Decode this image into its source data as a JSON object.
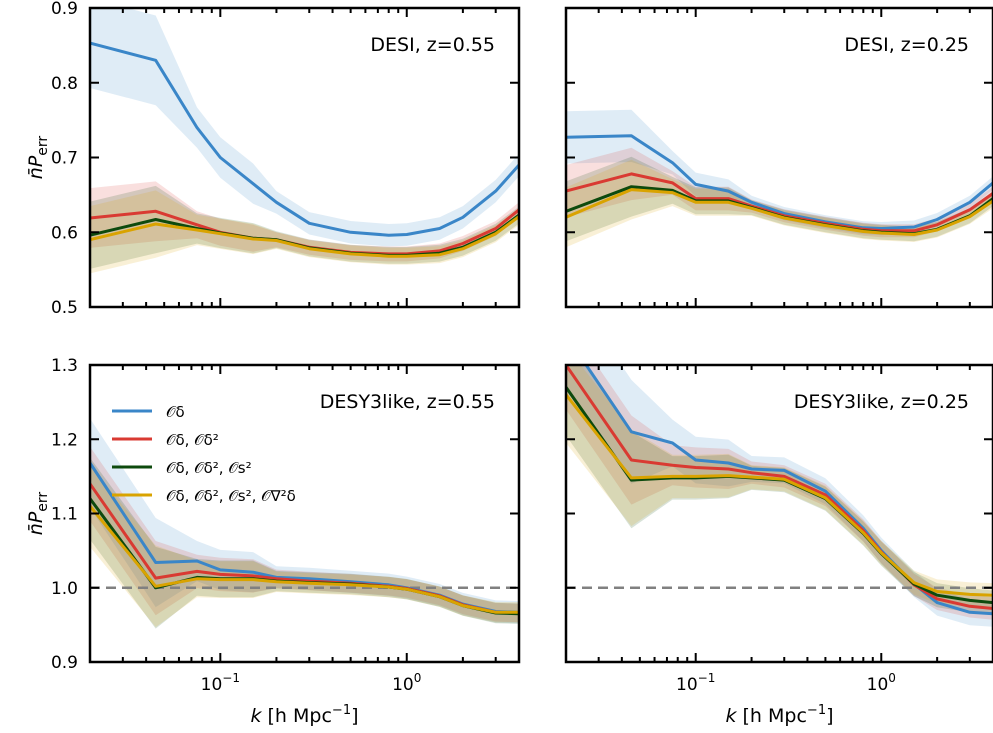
{
  "figure": {
    "ylabel": "n̄P",
    "ylabel_sub": "err",
    "xlabel_k": "k",
    "xlabel_units": "[h Mpc",
    "xlabel_exp": "−1",
    "xlabel_close": "]"
  },
  "legend": [
    {
      "label": "𝒪δ",
      "color": "#3a86c8"
    },
    {
      "label": "𝒪δ, 𝒪δ²",
      "color": "#d93a32"
    },
    {
      "label": "𝒪δ, 𝒪δ², 𝒪s²",
      "color": "#0d4a0d"
    },
    {
      "label": "𝒪δ, 𝒪δ², 𝒪s², 𝒪∇²δ",
      "color": "#d9a300"
    }
  ],
  "chart_data": [
    {
      "type": "line",
      "title": "DESI, z=0.55",
      "xscale": "log",
      "xlim": [
        0.02,
        4.0
      ],
      "ylim": [
        0.5,
        0.9
      ],
      "yticks": [
        "0.5",
        "0.6",
        "0.7",
        "0.8",
        "0.9"
      ],
      "xticks": [
        {
          "base": "10",
          "exp": "−1",
          "value": 0.1
        },
        {
          "base": "10",
          "exp": "0",
          "value": 1.0
        }
      ],
      "x": [
        0.02,
        0.045,
        0.075,
        0.1,
        0.15,
        0.2,
        0.3,
        0.5,
        0.8,
        1.0,
        1.5,
        2.0,
        3.0,
        4.0
      ],
      "series": [
        {
          "values": [
            0.853,
            0.83,
            0.74,
            0.7,
            0.665,
            0.64,
            0.612,
            0.6,
            0.596,
            0.597,
            0.605,
            0.62,
            0.655,
            0.69
          ],
          "color": "#3a86c8",
          "band": 0.06
        },
        {
          "values": [
            0.619,
            0.628,
            0.61,
            0.6,
            0.592,
            0.59,
            0.58,
            0.573,
            0.571,
            0.571,
            0.575,
            0.585,
            0.605,
            0.63
          ],
          "color": "#d93a32",
          "band": 0.04
        },
        {
          "values": [
            0.596,
            0.617,
            0.605,
            0.599,
            0.592,
            0.59,
            0.579,
            0.572,
            0.569,
            0.569,
            0.572,
            0.58,
            0.6,
            0.623
          ],
          "color": "#0d4a0d",
          "band": 0.045
        },
        {
          "values": [
            0.59,
            0.611,
            0.603,
            0.598,
            0.591,
            0.589,
            0.578,
            0.571,
            0.568,
            0.568,
            0.57,
            0.578,
            0.598,
            0.621
          ],
          "color": "#d9a300",
          "band": 0.045
        }
      ]
    },
    {
      "type": "line",
      "title": "DESI, z=0.25",
      "xscale": "log",
      "xlim": [
        0.02,
        4.0
      ],
      "ylim": [
        0.5,
        0.9
      ],
      "yticks": [
        "0.5",
        "0.6",
        "0.7",
        "0.8",
        "0.9"
      ],
      "xticks": [
        {
          "base": "10",
          "exp": "−1",
          "value": 0.1
        },
        {
          "base": "10",
          "exp": "0",
          "value": 1.0
        }
      ],
      "x": [
        0.02,
        0.045,
        0.075,
        0.1,
        0.15,
        0.2,
        0.3,
        0.5,
        0.8,
        1.0,
        1.5,
        2.0,
        3.0,
        4.0
      ],
      "series": [
        {
          "values": [
            0.727,
            0.729,
            0.693,
            0.664,
            0.655,
            0.64,
            0.625,
            0.614,
            0.606,
            0.605,
            0.607,
            0.617,
            0.64,
            0.666
          ],
          "color": "#3a86c8",
          "band": 0.035
        },
        {
          "values": [
            0.655,
            0.678,
            0.666,
            0.645,
            0.645,
            0.635,
            0.622,
            0.612,
            0.604,
            0.602,
            0.602,
            0.61,
            0.63,
            0.652
          ],
          "color": "#d93a32",
          "band": 0.035
        },
        {
          "values": [
            0.628,
            0.661,
            0.656,
            0.642,
            0.642,
            0.633,
            0.62,
            0.61,
            0.602,
            0.6,
            0.598,
            0.604,
            0.622,
            0.645
          ],
          "color": "#0d4a0d",
          "band": 0.04
        },
        {
          "values": [
            0.62,
            0.657,
            0.653,
            0.64,
            0.64,
            0.632,
            0.619,
            0.609,
            0.601,
            0.599,
            0.597,
            0.603,
            0.621,
            0.642
          ],
          "color": "#d9a300",
          "band": 0.04
        }
      ]
    },
    {
      "type": "line",
      "title": "DESY3like, z=0.55",
      "xscale": "log",
      "xlim": [
        0.02,
        4.0
      ],
      "ylim": [
        0.9,
        1.3
      ],
      "yticks": [
        "0.9",
        "1.0",
        "1.1",
        "1.2",
        "1.3"
      ],
      "xticks": [
        {
          "base": "10",
          "exp": "−1",
          "value": 0.1
        },
        {
          "base": "10",
          "exp": "0",
          "value": 1.0
        }
      ],
      "hline": 1.0,
      "x": [
        0.02,
        0.045,
        0.075,
        0.1,
        0.15,
        0.2,
        0.3,
        0.5,
        0.8,
        1.0,
        1.5,
        2.0,
        3.0,
        4.0
      ],
      "series": [
        {
          "values": [
            1.168,
            1.034,
            1.036,
            1.024,
            1.021,
            1.014,
            1.012,
            1.008,
            1.004,
            1.0,
            0.99,
            0.978,
            0.968,
            0.967
          ],
          "color": "#3a86c8",
          "band": 0.06
        },
        {
          "values": [
            1.14,
            1.013,
            1.022,
            1.018,
            1.016,
            1.012,
            1.009,
            1.006,
            1.002,
            0.999,
            0.989,
            0.977,
            0.967,
            0.966
          ],
          "color": "#d93a32",
          "band": 0.05
        },
        {
          "values": [
            1.12,
            1.0,
            1.014,
            1.012,
            1.012,
            1.009,
            1.007,
            1.005,
            1.001,
            0.998,
            0.988,
            0.976,
            0.966,
            0.965
          ],
          "color": "#0d4a0d",
          "band": 0.055
        },
        {
          "values": [
            1.11,
            1.002,
            1.012,
            1.011,
            1.011,
            1.008,
            1.006,
            1.004,
            1.001,
            0.998,
            0.988,
            0.976,
            0.967,
            0.967
          ],
          "color": "#d9a300",
          "band": 0.055
        }
      ]
    },
    {
      "type": "line",
      "title": "DESY3like, z=0.25",
      "xscale": "log",
      "xlim": [
        0.02,
        4.0
      ],
      "ylim": [
        0.9,
        1.3
      ],
      "yticks": [
        "0.9",
        "1.0",
        "1.1",
        "1.2",
        "1.3"
      ],
      "xticks": [
        {
          "base": "10",
          "exp": "−1",
          "value": 0.1
        },
        {
          "base": "10",
          "exp": "0",
          "value": 1.0
        }
      ],
      "hline": 1.0,
      "x": [
        0.02,
        0.045,
        0.075,
        0.1,
        0.15,
        0.2,
        0.3,
        0.5,
        0.8,
        1.0,
        1.5,
        2.0,
        3.0,
        4.0
      ],
      "series": [
        {
          "values": [
            1.34,
            1.21,
            1.195,
            1.172,
            1.168,
            1.16,
            1.158,
            1.13,
            1.08,
            1.05,
            1.005,
            0.98,
            0.967,
            0.965
          ],
          "color": "#3a86c8",
          "band": 0.07
        },
        {
          "values": [
            1.3,
            1.172,
            1.165,
            1.162,
            1.16,
            1.155,
            1.15,
            1.125,
            1.077,
            1.048,
            1.004,
            0.985,
            0.975,
            0.972
          ],
          "color": "#d93a32",
          "band": 0.06
        },
        {
          "values": [
            1.27,
            1.145,
            1.148,
            1.148,
            1.15,
            1.148,
            1.145,
            1.12,
            1.073,
            1.046,
            1.005,
            0.99,
            0.983,
            0.98
          ],
          "color": "#0d4a0d",
          "band": 0.065
        },
        {
          "values": [
            1.26,
            1.148,
            1.15,
            1.15,
            1.151,
            1.149,
            1.146,
            1.121,
            1.074,
            1.047,
            1.007,
            0.995,
            0.991,
            0.99
          ],
          "color": "#d9a300",
          "band": 0.065
        }
      ]
    }
  ]
}
